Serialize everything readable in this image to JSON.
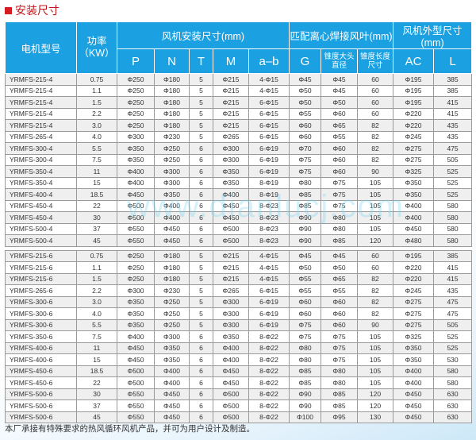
{
  "title": "安装尺寸",
  "watermark": "www.dianlucj.com",
  "header": {
    "model": "电机型号",
    "power": "功率\n（KW）",
    "group1": "风机安装尺寸(mm)",
    "group2": "匹配离心焊接风叶(mm)",
    "group3": "风机外型尺寸(mm)",
    "cols": [
      "P",
      "N",
      "T",
      "M",
      "a–b",
      "G",
      "锥度大头直径",
      "锥度长度尺寸",
      "AC",
      "L"
    ]
  },
  "group4": [
    [
      "YRMFS-215-4",
      "0.75",
      "Φ250",
      "Φ180",
      "5",
      "Φ215",
      "4-Φ15",
      "Φ45",
      "Φ45",
      "60",
      "Φ195",
      "385"
    ],
    [
      "YRMFS-215-4",
      "1.1",
      "Φ250",
      "Φ180",
      "5",
      "Φ215",
      "4-Φ15",
      "Φ50",
      "Φ45",
      "60",
      "Φ195",
      "385"
    ],
    [
      "YRMFS-215-4",
      "1.5",
      "Φ250",
      "Φ180",
      "5",
      "Φ215",
      "6-Φ15",
      "Φ50",
      "Φ50",
      "60",
      "Φ195",
      "415"
    ],
    [
      "YRMFS-215-4",
      "2.2",
      "Φ250",
      "Φ180",
      "5",
      "Φ215",
      "6-Φ15",
      "Φ55",
      "Φ60",
      "60",
      "Φ220",
      "415"
    ],
    [
      "YRMFS-215-4",
      "3.0",
      "Φ250",
      "Φ180",
      "5",
      "Φ215",
      "6-Φ15",
      "Φ60",
      "Φ65",
      "82",
      "Φ220",
      "435"
    ],
    [
      "YRMFS-265-4",
      "4.0",
      "Φ300",
      "Φ230",
      "5",
      "Φ265",
      "6-Φ15",
      "Φ60",
      "Φ55",
      "82",
      "Φ245",
      "435"
    ],
    [
      "YRMFS-300-4",
      "5.5",
      "Φ350",
      "Φ250",
      "6",
      "Φ300",
      "6-Φ19",
      "Φ70",
      "Φ60",
      "82",
      "Φ275",
      "475"
    ],
    [
      "YRMFS-300-4",
      "7.5",
      "Φ350",
      "Φ250",
      "6",
      "Φ300",
      "6-Φ19",
      "Φ75",
      "Φ60",
      "82",
      "Φ275",
      "505"
    ],
    [
      "YRMFS-350-4",
      "11",
      "Φ400",
      "Φ300",
      "6",
      "Φ350",
      "6-Φ19",
      "Φ75",
      "Φ60",
      "90",
      "Φ325",
      "525"
    ],
    [
      "YRMFS-350-4",
      "15",
      "Φ400",
      "Φ300",
      "6",
      "Φ350",
      "8-Φ19",
      "Φ80",
      "Φ75",
      "105",
      "Φ350",
      "525"
    ],
    [
      "YRMFS-400-4",
      "18.5",
      "Φ450",
      "Φ350",
      "6",
      "Φ400",
      "8-Φ19",
      "Φ85",
      "Φ75",
      "105",
      "Φ350",
      "525"
    ],
    [
      "YRMFS-450-4",
      "22",
      "Φ500",
      "Φ400",
      "6",
      "Φ450",
      "8-Φ23",
      "Φ85",
      "Φ75",
      "105",
      "Φ400",
      "580"
    ],
    [
      "YRMFS-450-4",
      "30",
      "Φ500",
      "Φ400",
      "6",
      "Φ450",
      "8-Φ23",
      "Φ90",
      "Φ80",
      "105",
      "Φ400",
      "580"
    ],
    [
      "YRMFS-500-4",
      "37",
      "Φ550",
      "Φ450",
      "6",
      "Φ500",
      "8-Φ23",
      "Φ90",
      "Φ80",
      "105",
      "Φ450",
      "580"
    ],
    [
      "YRMFS-500-4",
      "45",
      "Φ550",
      "Φ450",
      "6",
      "Φ500",
      "8-Φ23",
      "Φ90",
      "Φ85",
      "120",
      "Φ480",
      "580"
    ]
  ],
  "group6": [
    [
      "YRMFS-215-6",
      "0.75",
      "Φ250",
      "Φ180",
      "5",
      "Φ215",
      "4-Φ15",
      "Φ45",
      "Φ45",
      "60",
      "Φ195",
      "385"
    ],
    [
      "YRMFS-215-6",
      "1.1",
      "Φ250",
      "Φ180",
      "5",
      "Φ215",
      "4-Φ15",
      "Φ50",
      "Φ50",
      "60",
      "Φ220",
      "415"
    ],
    [
      "YRMFS-215-6",
      "1.5",
      "Φ250",
      "Φ180",
      "5",
      "Φ215",
      "4-Φ15",
      "Φ55",
      "Φ65",
      "82",
      "Φ220",
      "415"
    ],
    [
      "YRMFS-265-6",
      "2.2",
      "Φ300",
      "Φ230",
      "5",
      "Φ265",
      "6-Φ15",
      "Φ55",
      "Φ55",
      "82",
      "Φ245",
      "435"
    ],
    [
      "YRMFS-300-6",
      "3.0",
      "Φ350",
      "Φ250",
      "5",
      "Φ300",
      "6-Φ19",
      "Φ60",
      "Φ60",
      "82",
      "Φ275",
      "475"
    ],
    [
      "YRMFS-300-6",
      "4.0",
      "Φ350",
      "Φ250",
      "5",
      "Φ300",
      "6-Φ19",
      "Φ60",
      "Φ60",
      "82",
      "Φ275",
      "475"
    ],
    [
      "YRMFS-300-6",
      "5.5",
      "Φ350",
      "Φ250",
      "5",
      "Φ300",
      "6-Φ19",
      "Φ75",
      "Φ60",
      "90",
      "Φ275",
      "505"
    ],
    [
      "YRMFS-350-6",
      "7.5",
      "Φ400",
      "Φ300",
      "6",
      "Φ350",
      "8-Φ22",
      "Φ75",
      "Φ75",
      "105",
      "Φ325",
      "525"
    ],
    [
      "YRMFS-400-6",
      "11",
      "Φ450",
      "Φ350",
      "6",
      "Φ400",
      "8-Φ22",
      "Φ80",
      "Φ75",
      "105",
      "Φ350",
      "525"
    ],
    [
      "YRMFS-400-6",
      "15",
      "Φ450",
      "Φ350",
      "6",
      "Φ400",
      "8-Φ22",
      "Φ80",
      "Φ75",
      "105",
      "Φ350",
      "530"
    ],
    [
      "YRMFS-450-6",
      "18.5",
      "Φ500",
      "Φ400",
      "6",
      "Φ450",
      "8-Φ22",
      "Φ85",
      "Φ80",
      "105",
      "Φ400",
      "580"
    ],
    [
      "YRMFS-450-6",
      "22",
      "Φ500",
      "Φ400",
      "6",
      "Φ450",
      "8-Φ22",
      "Φ85",
      "Φ80",
      "105",
      "Φ400",
      "580"
    ],
    [
      "YRMFS-500-6",
      "30",
      "Φ550",
      "Φ450",
      "6",
      "Φ500",
      "8-Φ22",
      "Φ90",
      "Φ85",
      "120",
      "Φ450",
      "630"
    ],
    [
      "YRMFS-500-6",
      "37",
      "Φ550",
      "Φ450",
      "6",
      "Φ500",
      "8-Φ22",
      "Φ90",
      "Φ85",
      "120",
      "Φ450",
      "630"
    ],
    [
      "YRMFS-500-6",
      "45",
      "Φ550",
      "Φ450",
      "6",
      "Φ500",
      "8-Φ22",
      "Φ100",
      "Φ95",
      "130",
      "Φ450",
      "630"
    ]
  ],
  "footer": "本厂承接有特殊要求的热风循环风机产品，并可为用户设计及制造。"
}
